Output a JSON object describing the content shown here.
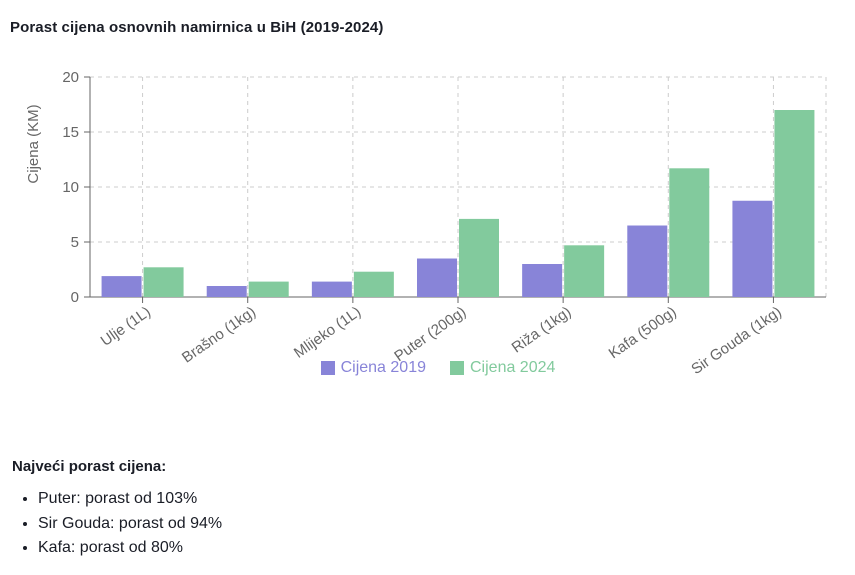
{
  "chart_data": {
    "type": "bar",
    "title": "Porast cijena osnovnih namirnica u BiH (2019-2024)",
    "ylabel": "Cijena (KM)",
    "xlabel": "",
    "categories": [
      "Ulje (1L)",
      "Brašno (1kg)",
      "Mlijeko (1L)",
      "Puter (200g)",
      "Riža (1kg)",
      "Kafa (500g)",
      "Sir Gouda (1kg)"
    ],
    "series": [
      {
        "name": "Cijena 2019",
        "color": "#8884d8",
        "values": [
          1.9,
          1.0,
          1.4,
          3.5,
          3.0,
          6.5,
          8.75
        ]
      },
      {
        "name": "Cijena 2024",
        "color": "#82ca9d",
        "values": [
          2.7,
          1.4,
          2.3,
          7.1,
          4.7,
          11.7,
          17.0
        ]
      }
    ],
    "ylim": [
      0,
      20
    ],
    "yticks": [
      0,
      5,
      10,
      15,
      20
    ],
    "ytick_labels": [
      "0",
      "5",
      "10",
      "15",
      "20"
    ],
    "grid": "dashed",
    "grid_color": "#cccccc",
    "axis_color": "#666666",
    "tick_text_color": "#666666",
    "legend_position": "bottom",
    "x_label_angle_deg": -35
  },
  "summary": {
    "heading": "Najveći porast cijena:",
    "items": [
      "Puter: porast od 103%",
      "Sir Gouda: porast od 94%",
      "Kafa: porast od 80%"
    ]
  },
  "colors": {
    "background": "#ffffff",
    "text": "#1a1d26",
    "series_2019": "#8884d8",
    "series_2024": "#82ca9d"
  }
}
